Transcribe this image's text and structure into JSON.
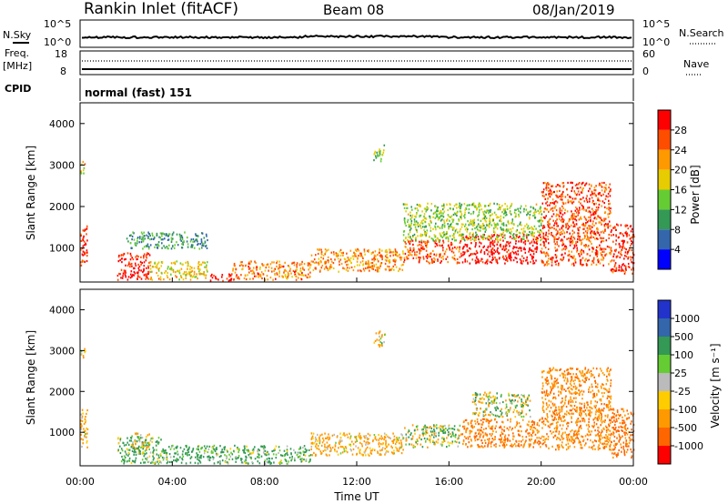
{
  "header": {
    "station": "Rankin Inlet (fitACF)",
    "beam": "Beam 08",
    "date": "08/Jan/2019"
  },
  "status_panels": {
    "nsky_label": "N.Sky",
    "nsearch_label": "N.Search",
    "freq_label_1": "Freq.",
    "freq_label_2": "[MHz]",
    "nave_label": "Nave",
    "cpid_label": "CPID",
    "cpid_value": "normal (fast) 151",
    "nsky_ticks": [
      "10^5",
      "10^0"
    ],
    "nsearch_ticks": [
      "10^5",
      "10^0"
    ],
    "freq_ticks": [
      "18",
      "8"
    ],
    "nave_ticks": [
      "60",
      "0"
    ]
  },
  "colorbars": {
    "power": {
      "label": "Power [dB]",
      "ticks": [
        "28",
        "24",
        "20",
        "16",
        "12",
        "8",
        "4"
      ],
      "colors": [
        "#ff0000",
        "#ff4d00",
        "#ff9900",
        "#e6cc00",
        "#66cc33",
        "#339955",
        "#3366aa",
        "#0000ff"
      ]
    },
    "velocity": {
      "label": "Velocity [m s⁻¹]",
      "ticks": [
        "1000",
        "500",
        "100",
        "25",
        "-25",
        "-100",
        "-500",
        "-1000"
      ],
      "colors": [
        "#2233cc",
        "#3366aa",
        "#339955",
        "#66cc33",
        "#bbbbbb",
        "#ffcc00",
        "#ff9900",
        "#ff6600",
        "#ff0000"
      ]
    }
  },
  "axes": {
    "ylabel": "Slant Range [km]",
    "xlabel": "Time UT",
    "x_ticks": [
      "00:00",
      "04:00",
      "08:00",
      "12:00",
      "16:00",
      "20:00",
      "00:00"
    ],
    "y_ticks": [
      "4000",
      "3000",
      "2000",
      "1000"
    ]
  },
  "chart_data": [
    {
      "type": "heatmap",
      "title": "Power",
      "xlabel": "",
      "ylabel": "Slant Range [km]",
      "x_range_hours": [
        0,
        24
      ],
      "ylim": [
        180,
        4500
      ],
      "colorbar_range_db": [
        0,
        30
      ],
      "regions": [
        {
          "t": [
            0.0,
            0.3
          ],
          "r": [
            600,
            1600
          ],
          "db": 26
        },
        {
          "t": [
            0.0,
            0.2
          ],
          "r": [
            2800,
            3100
          ],
          "db": 18
        },
        {
          "t": [
            1.6,
            3.0
          ],
          "r": [
            250,
            900
          ],
          "db": 28
        },
        {
          "t": [
            3.0,
            5.5
          ],
          "r": [
            250,
            700
          ],
          "db": 18
        },
        {
          "t": [
            5.6,
            6.6
          ],
          "r": [
            220,
            400
          ],
          "db": 28
        },
        {
          "t": [
            6.6,
            10.0
          ],
          "r": [
            250,
            700
          ],
          "db": 22
        },
        {
          "t": [
            10.0,
            14.0
          ],
          "r": [
            450,
            1000
          ],
          "db": 21
        },
        {
          "t": [
            12.7,
            13.2
          ],
          "r": [
            3100,
            3500
          ],
          "db": 14
        },
        {
          "t": [
            14.0,
            16.5
          ],
          "r": [
            650,
            1200
          ],
          "db": 24
        },
        {
          "t": [
            16.5,
            20.0
          ],
          "r": [
            650,
            1350
          ],
          "db": 29
        },
        {
          "t": [
            14.0,
            20.0
          ],
          "r": [
            1200,
            2100
          ],
          "db": 14
        },
        {
          "t": [
            20.0,
            23.0
          ],
          "r": [
            600,
            2600
          ],
          "db": 25
        },
        {
          "t": [
            23.0,
            24.0
          ],
          "r": [
            400,
            1600
          ],
          "db": 27
        },
        {
          "t": [
            2.0,
            5.5
          ],
          "r": [
            1000,
            1400
          ],
          "db": 9
        }
      ]
    },
    {
      "type": "heatmap",
      "title": "Velocity",
      "xlabel": "Time UT",
      "ylabel": "Slant Range [km]",
      "x_range_hours": [
        0,
        24
      ],
      "ylim": [
        180,
        4500
      ],
      "colorbar_range_ms": [
        -1000,
        1000
      ],
      "regions": [
        {
          "t": [
            0.0,
            0.3
          ],
          "r": [
            600,
            1600
          ],
          "v": -200
        },
        {
          "t": [
            0.0,
            0.2
          ],
          "r": [
            2800,
            3100
          ],
          "v": -150
        },
        {
          "t": [
            1.6,
            3.5
          ],
          "r": [
            250,
            900
          ],
          "v": 150
        },
        {
          "t": [
            2.2,
            3.0
          ],
          "r": [
            500,
            1000
          ],
          "v": 0
        },
        {
          "t": [
            3.5,
            5.5
          ],
          "r": [
            250,
            700
          ],
          "v": 200
        },
        {
          "t": [
            5.5,
            10.0
          ],
          "r": [
            250,
            700
          ],
          "v": 180
        },
        {
          "t": [
            10.0,
            14.0
          ],
          "r": [
            450,
            1000
          ],
          "v": -200
        },
        {
          "t": [
            12.7,
            13.2
          ],
          "r": [
            3100,
            3500
          ],
          "v": -120
        },
        {
          "t": [
            14.0,
            16.5
          ],
          "r": [
            650,
            1200
          ],
          "v": 60
        },
        {
          "t": [
            16.5,
            20.0
          ],
          "r": [
            650,
            1350
          ],
          "v": -500
        },
        {
          "t": [
            17.0,
            19.5
          ],
          "r": [
            1400,
            2000
          ],
          "v": 0
        },
        {
          "t": [
            20.0,
            23.0
          ],
          "r": [
            600,
            2600
          ],
          "v": -450
        },
        {
          "t": [
            23.0,
            24.0
          ],
          "r": [
            400,
            1600
          ],
          "v": -600
        }
      ]
    }
  ]
}
